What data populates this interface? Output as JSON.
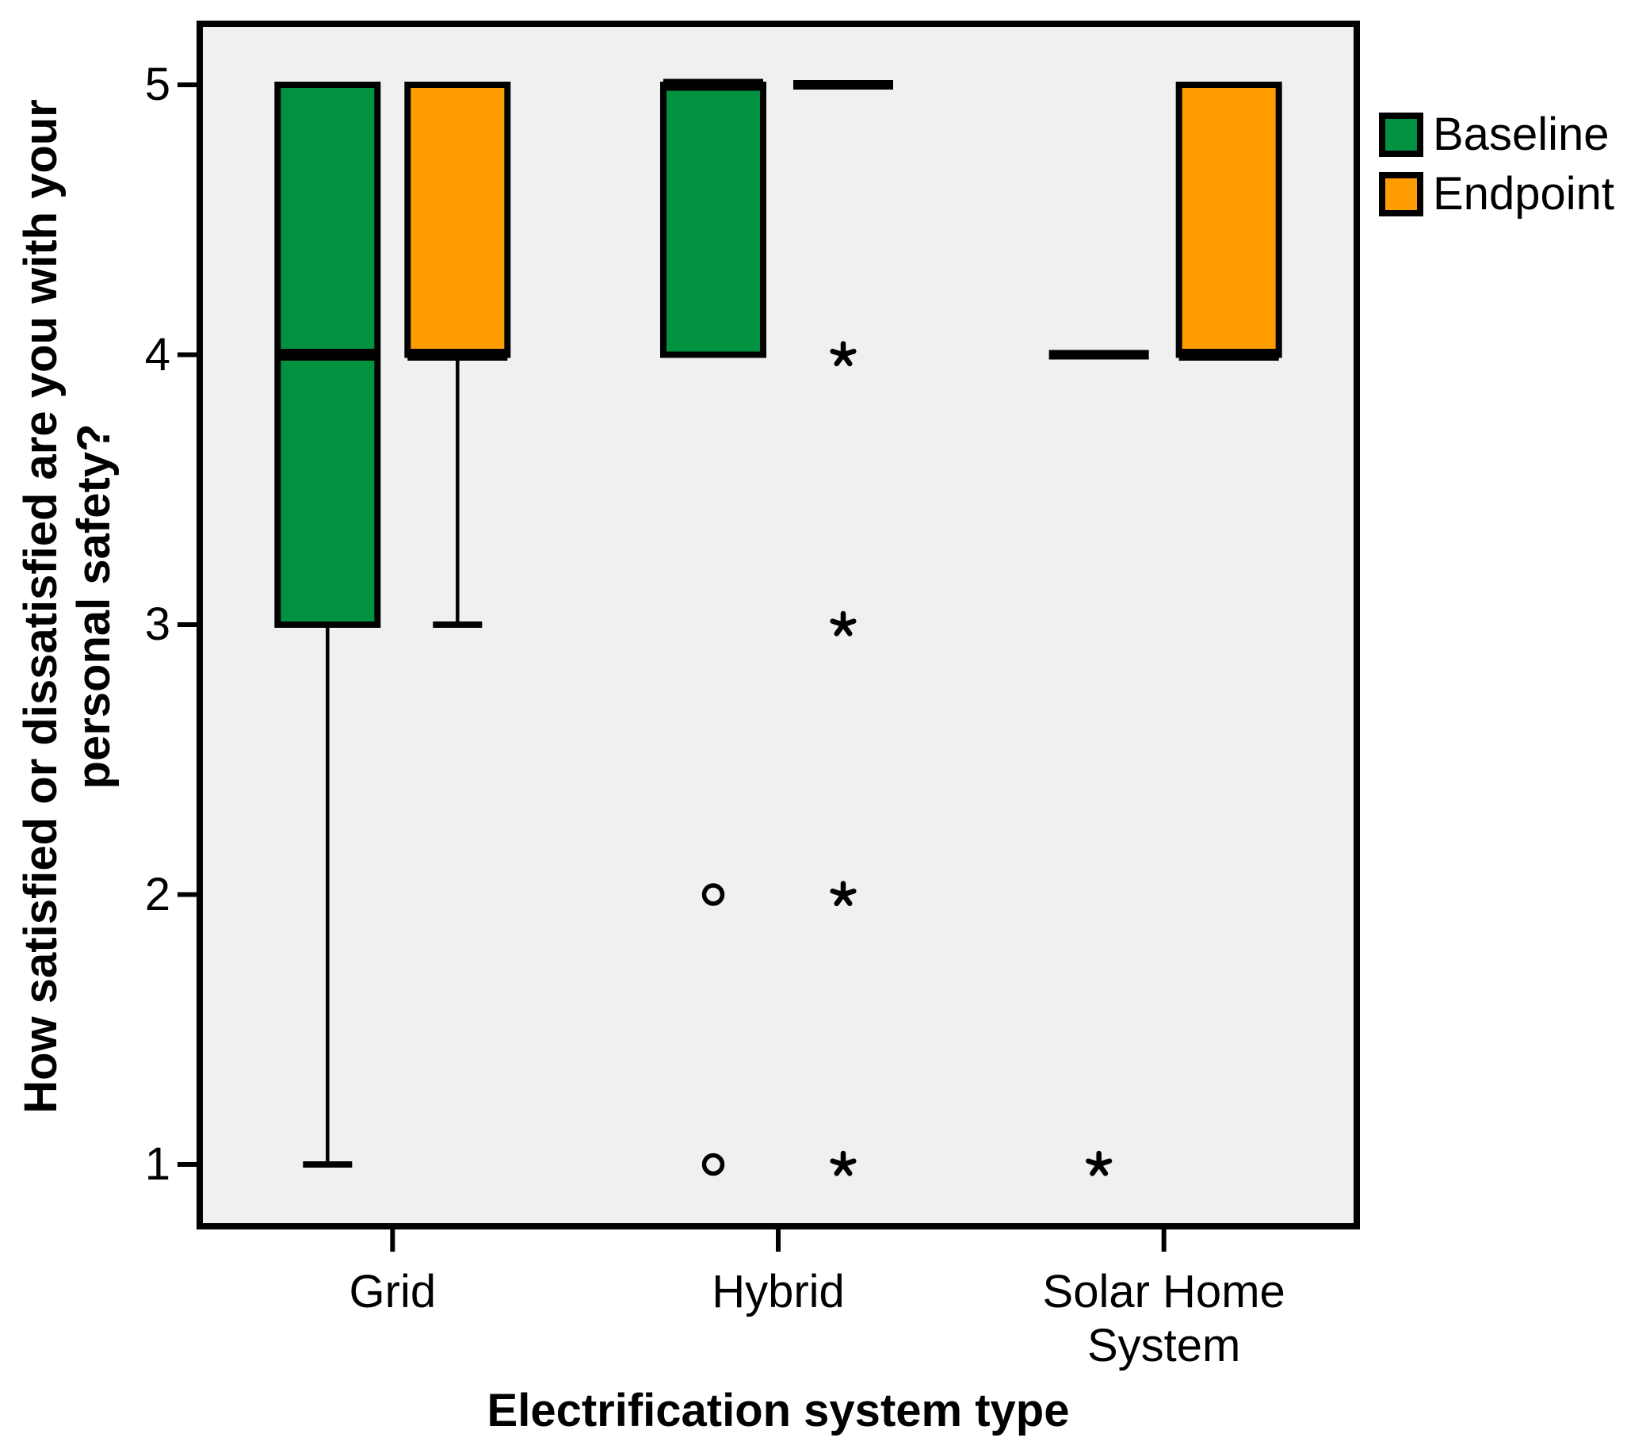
{
  "chart_data": {
    "type": "boxplot",
    "title": "",
    "xlabel": "Electrification system type",
    "ylabel": "How satisfied or dissatisfied are you with your personal safety?",
    "ylabel_lines": [
      "How satisfied or dissatisfied are you with your",
      "personal safety?"
    ],
    "categories": [
      "Grid",
      "Hybrid",
      "Solar Home System"
    ],
    "y_ticks": [
      5,
      4,
      3,
      2,
      1
    ],
    "ylim": [
      1,
      5
    ],
    "grid": false,
    "legend_position": "right-top",
    "colors": {
      "plot_background": "#F0F0F0",
      "frame": "#000000"
    },
    "series": [
      {
        "name": "Baseline",
        "color": "#009240"
      },
      {
        "name": "Endpoint",
        "color": "#FF9C00"
      }
    ],
    "boxes": [
      {
        "category": "Grid",
        "series": "Baseline",
        "q1": 3,
        "median": 4,
        "q3": 5,
        "whisker_low": 1,
        "whisker_high": 5,
        "outliers": [],
        "extremes": []
      },
      {
        "category": "Grid",
        "series": "Endpoint",
        "q1": 4,
        "median": 4,
        "q3": 5,
        "whisker_low": 3,
        "whisker_high": 5,
        "outliers": [],
        "extremes": []
      },
      {
        "category": "Hybrid",
        "series": "Baseline",
        "q1": 4,
        "median": 5,
        "q3": 5,
        "whisker_low": 4,
        "whisker_high": 5,
        "outliers": [
          2,
          1
        ],
        "extremes": []
      },
      {
        "category": "Hybrid",
        "series": "Endpoint",
        "q1": 5,
        "median": 5,
        "q3": 5,
        "whisker_low": 5,
        "whisker_high": 5,
        "outliers": [],
        "extremes": [
          4,
          3,
          2,
          1
        ]
      },
      {
        "category": "Solar Home System",
        "series": "Baseline",
        "q1": 4,
        "median": 4,
        "q3": 4,
        "whisker_low": 4,
        "whisker_high": 4,
        "outliers": [],
        "extremes": [
          1
        ]
      },
      {
        "category": "Solar Home System",
        "series": "Endpoint",
        "q1": 4,
        "median": 4,
        "q3": 5,
        "whisker_low": 4,
        "whisker_high": 5,
        "outliers": [],
        "extremes": []
      }
    ],
    "marker_legend": {
      "outlier_marker": "circle",
      "extreme_marker": "asterisk"
    }
  }
}
